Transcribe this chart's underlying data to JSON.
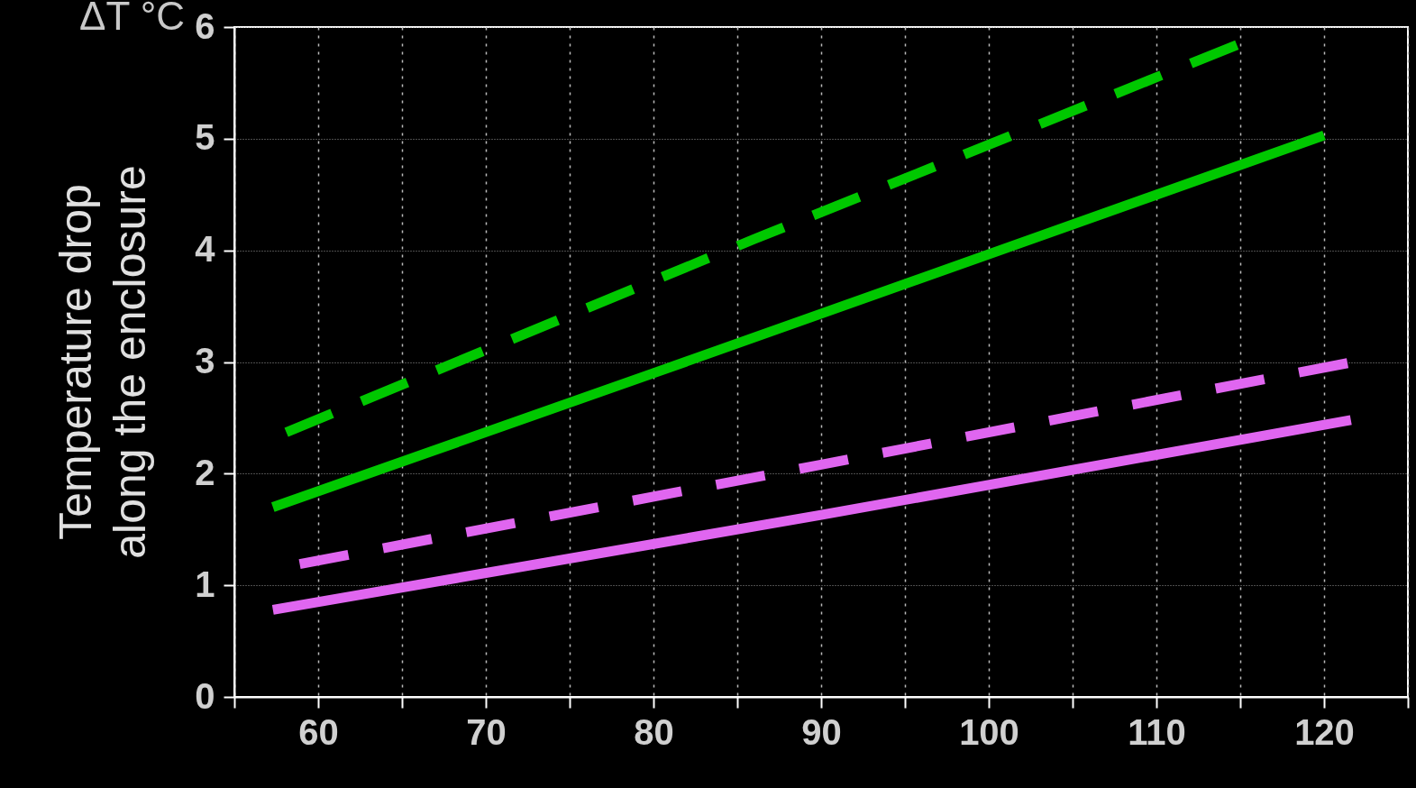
{
  "chart_data": {
    "type": "line",
    "ylabel": "Temperature drop along the enclosure",
    "annotations": [
      "ΔT °C"
    ],
    "xlim": [
      55,
      125
    ],
    "xticks": [
      {
        "value": 55,
        "label": null
      },
      60,
      {
        "value": 65,
        "label": null
      },
      70,
      {
        "value": 75,
        "label": null
      },
      80,
      {
        "value": 85,
        "label": null
      },
      90,
      {
        "value": 95,
        "label": null
      },
      100,
      {
        "value": 105,
        "label": null
      },
      110,
      {
        "value": 115,
        "label": null
      },
      120,
      {
        "value": 125,
        "label": null
      }
    ],
    "ylim": [
      0,
      6
    ],
    "yticks": [
      0,
      1,
      2,
      3,
      4,
      5,
      6
    ],
    "grid": true,
    "marker": "none",
    "series": [
      {
        "color": "#00c800",
        "line_style": "dashed",
        "x": [
          58.1,
          86,
          114.8
        ],
        "values": [
          2.37,
          4.1,
          5.84
        ]
      },
      {
        "color": "#00c800",
        "line_style": "solid",
        "x": [
          57.3,
          80,
          120
        ],
        "values": [
          1.7,
          2.9,
          5.03
        ]
      },
      {
        "color": "#e066f0",
        "line_style": "dashed",
        "x": [
          58.9,
          90,
          121.4
        ],
        "values": [
          1.19,
          2.08,
          2.99
        ]
      },
      {
        "color": "#e066f0",
        "line_style": "solid",
        "x": [
          57.3,
          90,
          121.6
        ],
        "values": [
          0.78,
          1.63,
          2.48
        ]
      }
    ]
  }
}
